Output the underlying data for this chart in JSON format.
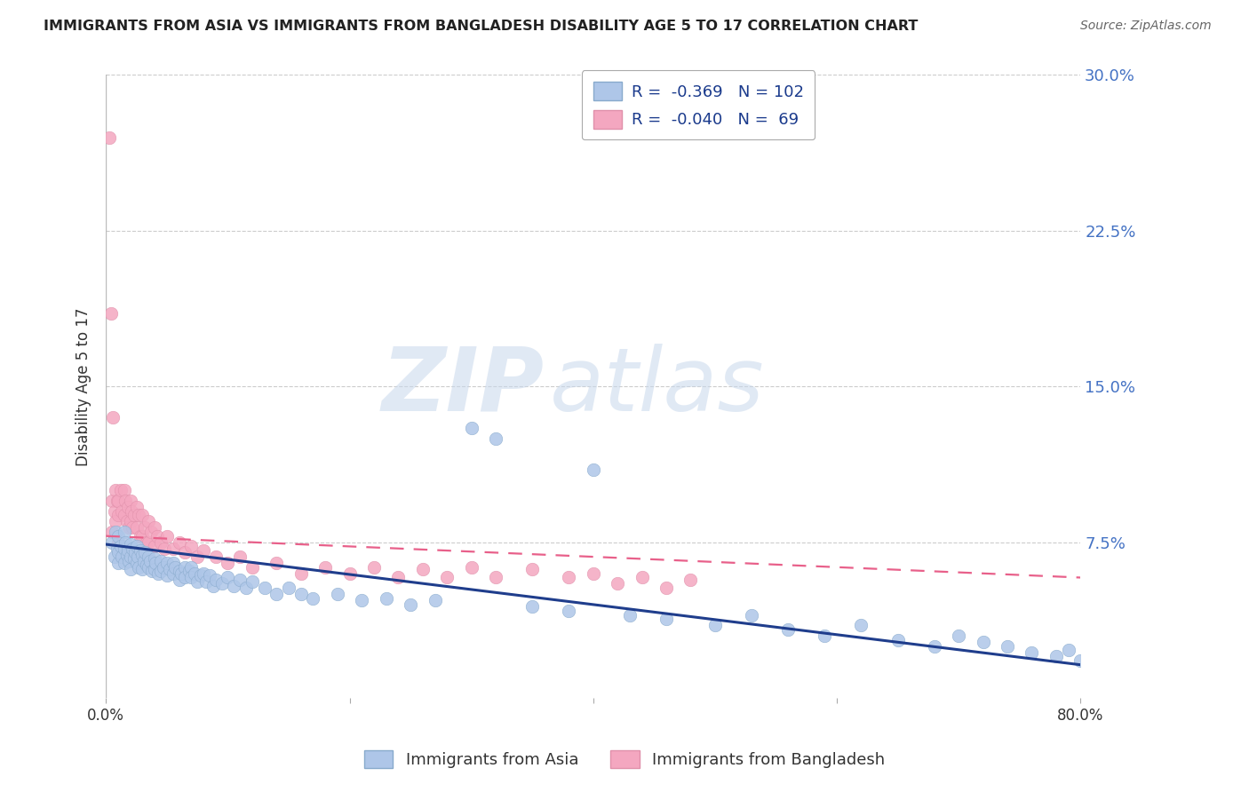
{
  "title": "IMMIGRANTS FROM ASIA VS IMMIGRANTS FROM BANGLADESH DISABILITY AGE 5 TO 17 CORRELATION CHART",
  "source": "Source: ZipAtlas.com",
  "ylabel": "Disability Age 5 to 17",
  "x_min": 0.0,
  "x_max": 0.8,
  "y_min": 0.0,
  "y_max": 0.3,
  "color_asia": "#aec6e8",
  "color_bangladesh": "#f4a7c0",
  "line_color_asia": "#1f3d8c",
  "line_color_bangladesh": "#e8608a",
  "legend_asia": "Immigrants from Asia",
  "legend_bangladesh": "Immigrants from Bangladesh",
  "watermark_zip": "ZIP",
  "watermark_atlas": "atlas",
  "asia_R": -0.369,
  "asia_N": 102,
  "bangladesh_R": -0.04,
  "bangladesh_N": 69,
  "asia_x": [
    0.005,
    0.007,
    0.008,
    0.009,
    0.01,
    0.01,
    0.01,
    0.012,
    0.013,
    0.015,
    0.015,
    0.015,
    0.016,
    0.017,
    0.018,
    0.019,
    0.02,
    0.02,
    0.02,
    0.022,
    0.023,
    0.024,
    0.025,
    0.025,
    0.026,
    0.027,
    0.028,
    0.03,
    0.03,
    0.031,
    0.032,
    0.033,
    0.035,
    0.035,
    0.036,
    0.038,
    0.04,
    0.04,
    0.041,
    0.043,
    0.045,
    0.045,
    0.047,
    0.05,
    0.05,
    0.052,
    0.055,
    0.055,
    0.057,
    0.06,
    0.06,
    0.062,
    0.065,
    0.065,
    0.068,
    0.07,
    0.07,
    0.073,
    0.075,
    0.078,
    0.08,
    0.082,
    0.085,
    0.088,
    0.09,
    0.095,
    0.1,
    0.105,
    0.11,
    0.115,
    0.12,
    0.13,
    0.14,
    0.15,
    0.16,
    0.17,
    0.19,
    0.21,
    0.23,
    0.25,
    0.27,
    0.3,
    0.32,
    0.35,
    0.38,
    0.4,
    0.43,
    0.46,
    0.5,
    0.53,
    0.56,
    0.59,
    0.62,
    0.65,
    0.68,
    0.7,
    0.72,
    0.74,
    0.76,
    0.78,
    0.79,
    0.8
  ],
  "asia_y": [
    0.075,
    0.068,
    0.08,
    0.072,
    0.065,
    0.078,
    0.07,
    0.073,
    0.068,
    0.08,
    0.072,
    0.065,
    0.075,
    0.069,
    0.071,
    0.066,
    0.074,
    0.068,
    0.062,
    0.072,
    0.067,
    0.07,
    0.073,
    0.065,
    0.068,
    0.063,
    0.071,
    0.069,
    0.062,
    0.066,
    0.07,
    0.064,
    0.068,
    0.063,
    0.066,
    0.061,
    0.067,
    0.062,
    0.065,
    0.06,
    0.066,
    0.061,
    0.063,
    0.065,
    0.059,
    0.062,
    0.065,
    0.06,
    0.063,
    0.061,
    0.057,
    0.06,
    0.063,
    0.058,
    0.061,
    0.063,
    0.058,
    0.06,
    0.056,
    0.059,
    0.06,
    0.056,
    0.059,
    0.054,
    0.057,
    0.055,
    0.058,
    0.054,
    0.057,
    0.053,
    0.056,
    0.053,
    0.05,
    0.053,
    0.05,
    0.048,
    0.05,
    0.047,
    0.048,
    0.045,
    0.047,
    0.13,
    0.125,
    0.044,
    0.042,
    0.11,
    0.04,
    0.038,
    0.035,
    0.04,
    0.033,
    0.03,
    0.035,
    0.028,
    0.025,
    0.03,
    0.027,
    0.025,
    0.022,
    0.02,
    0.023,
    0.018
  ],
  "bangladesh_x": [
    0.003,
    0.004,
    0.005,
    0.005,
    0.006,
    0.007,
    0.008,
    0.008,
    0.009,
    0.01,
    0.01,
    0.01,
    0.012,
    0.013,
    0.015,
    0.015,
    0.016,
    0.017,
    0.018,
    0.019,
    0.02,
    0.02,
    0.021,
    0.022,
    0.023,
    0.025,
    0.025,
    0.027,
    0.028,
    0.03,
    0.03,
    0.032,
    0.033,
    0.035,
    0.035,
    0.037,
    0.04,
    0.04,
    0.042,
    0.045,
    0.048,
    0.05,
    0.055,
    0.06,
    0.065,
    0.07,
    0.075,
    0.08,
    0.09,
    0.1,
    0.11,
    0.12,
    0.14,
    0.16,
    0.18,
    0.2,
    0.22,
    0.24,
    0.26,
    0.28,
    0.3,
    0.32,
    0.35,
    0.38,
    0.4,
    0.42,
    0.44,
    0.46,
    0.48
  ],
  "bangladesh_y": [
    0.27,
    0.185,
    0.095,
    0.08,
    0.135,
    0.09,
    0.1,
    0.085,
    0.095,
    0.095,
    0.088,
    0.075,
    0.1,
    0.09,
    0.1,
    0.088,
    0.095,
    0.085,
    0.092,
    0.082,
    0.095,
    0.085,
    0.09,
    0.082,
    0.088,
    0.092,
    0.082,
    0.088,
    0.078,
    0.088,
    0.078,
    0.082,
    0.075,
    0.085,
    0.075,
    0.08,
    0.082,
    0.073,
    0.078,
    0.075,
    0.072,
    0.078,
    0.072,
    0.075,
    0.07,
    0.073,
    0.068,
    0.071,
    0.068,
    0.065,
    0.068,
    0.063,
    0.065,
    0.06,
    0.063,
    0.06,
    0.063,
    0.058,
    0.062,
    0.058,
    0.063,
    0.058,
    0.062,
    0.058,
    0.06,
    0.055,
    0.058,
    0.053,
    0.057
  ]
}
